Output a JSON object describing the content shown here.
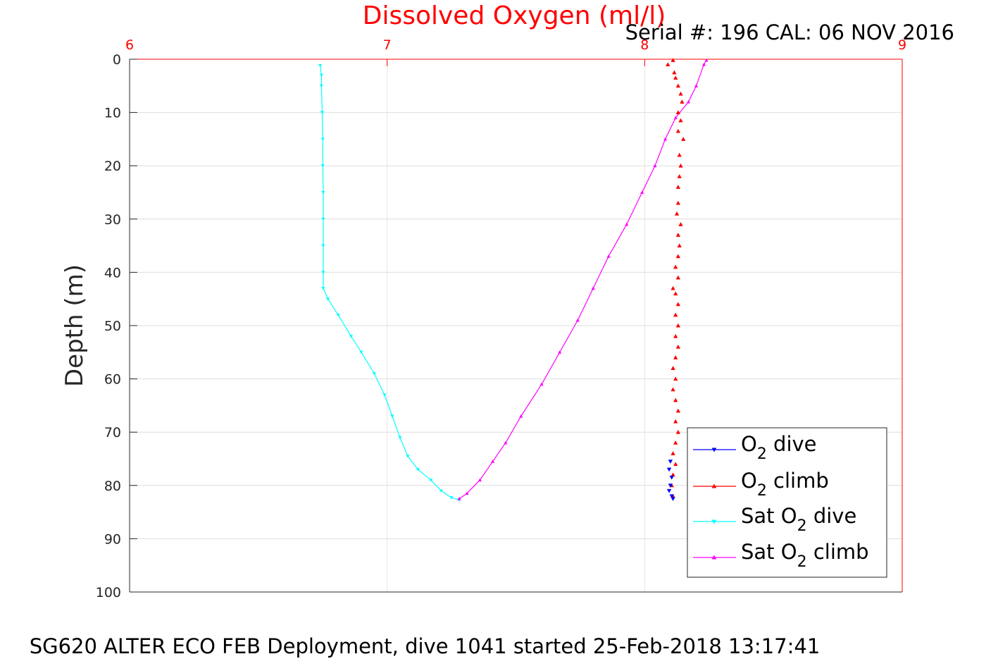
{
  "chart_data": {
    "type": "line",
    "title": "Dissolved Oxygen (ml/l)",
    "serial_label": "Serial #: 196  CAL: 06 NOV 2016",
    "caption": "SG620 ALTER ECO FEB Deployment, dive 1041 started 25-Feb-2018 13:17:41",
    "ylabel": "Depth (m)",
    "xlabel": "",
    "xlim": [
      6,
      9
    ],
    "ylim": [
      0,
      100
    ],
    "y_reversed": true,
    "x_axis_position": "top",
    "grid": true,
    "legend_placement": "bottom-right",
    "x_ticks": [
      "6",
      "7",
      "8",
      "9"
    ],
    "y_ticks": [
      "0",
      "10",
      "20",
      "30",
      "40",
      "50",
      "60",
      "70",
      "80",
      "90",
      "100"
    ],
    "colors": {
      "title": "#ff0000",
      "x_axis": "#ff0000",
      "grid": "#dedede",
      "text": "#262626"
    },
    "series": [
      {
        "label_main": "O",
        "label_sub": "2",
        "label_rest": " dive",
        "color": "#0000ff",
        "marker": "triangle-down",
        "points": [
          [
            8.1,
            75.5
          ],
          [
            8.095,
            77.0
          ],
          [
            8.105,
            78.5
          ],
          [
            8.1,
            80.0
          ],
          [
            8.095,
            81.0
          ],
          [
            8.105,
            82.0
          ],
          [
            8.11,
            82.5
          ]
        ]
      },
      {
        "label_main": "O",
        "label_sub": "2",
        "label_rest": " climb",
        "color": "#ff0000",
        "marker": "triangle-up",
        "points": [
          [
            8.11,
            82.0
          ],
          [
            8.105,
            80.0
          ],
          [
            8.11,
            78.0
          ],
          [
            8.12,
            76.0
          ],
          [
            8.11,
            74.0
          ],
          [
            8.12,
            72.0
          ],
          [
            8.13,
            70.0
          ],
          [
            8.12,
            68.0
          ],
          [
            8.13,
            66.0
          ],
          [
            8.12,
            64.0
          ],
          [
            8.11,
            62.0
          ],
          [
            8.12,
            60.0
          ],
          [
            8.11,
            58.0
          ],
          [
            8.12,
            56.0
          ],
          [
            8.13,
            54.0
          ],
          [
            8.12,
            52.0
          ],
          [
            8.13,
            50.0
          ],
          [
            8.12,
            48.0
          ],
          [
            8.13,
            46.0
          ],
          [
            8.12,
            44.0
          ],
          [
            8.11,
            43.0
          ],
          [
            8.13,
            41.0
          ],
          [
            8.12,
            39.0
          ],
          [
            8.13,
            37.0
          ],
          [
            8.135,
            35.0
          ],
          [
            8.13,
            33.0
          ],
          [
            8.14,
            31.0
          ],
          [
            8.125,
            29.0
          ],
          [
            8.13,
            27.0
          ],
          [
            8.13,
            24.0
          ],
          [
            8.135,
            22.0
          ],
          [
            8.14,
            20.0
          ],
          [
            8.135,
            18.0
          ],
          [
            8.15,
            15.0
          ],
          [
            8.13,
            13.5
          ],
          [
            8.14,
            11.5
          ],
          [
            8.13,
            10.0
          ],
          [
            8.145,
            8.0
          ],
          [
            8.14,
            6.5
          ],
          [
            8.13,
            5.0
          ],
          [
            8.12,
            3.5
          ],
          [
            8.115,
            2.5
          ],
          [
            8.09,
            1.0
          ],
          [
            8.11,
            0.2
          ]
        ]
      },
      {
        "label_main": "Sat O",
        "label_sub": "2",
        "label_rest": " dive",
        "color": "#00ffff",
        "marker": "triangle-down",
        "points": [
          [
            6.74,
            1.2
          ],
          [
            6.745,
            3.0
          ],
          [
            6.745,
            5.0
          ],
          [
            6.748,
            10.0
          ],
          [
            6.75,
            15.0
          ],
          [
            6.75,
            20.0
          ],
          [
            6.752,
            25.0
          ],
          [
            6.752,
            30.0
          ],
          [
            6.752,
            35.0
          ],
          [
            6.752,
            40.0
          ],
          [
            6.752,
            43.0
          ],
          [
            6.77,
            45.0
          ],
          [
            6.81,
            48.0
          ],
          [
            6.86,
            52.0
          ],
          [
            6.9,
            55.0
          ],
          [
            6.95,
            59.0
          ],
          [
            6.99,
            63.0
          ],
          [
            7.02,
            67.0
          ],
          [
            7.05,
            71.0
          ],
          [
            7.08,
            74.5
          ],
          [
            7.12,
            77.0
          ],
          [
            7.17,
            79.0
          ],
          [
            7.21,
            81.0
          ],
          [
            7.25,
            82.3
          ],
          [
            7.28,
            82.7
          ]
        ]
      },
      {
        "label_main": "Sat O",
        "label_sub": "2",
        "label_rest": " climb",
        "color": "#ff00ff",
        "marker": "triangle-up",
        "points": [
          [
            7.28,
            82.5
          ],
          [
            7.31,
            81.5
          ],
          [
            7.36,
            79.0
          ],
          [
            7.41,
            75.5
          ],
          [
            7.46,
            72.0
          ],
          [
            7.52,
            67.0
          ],
          [
            7.6,
            61.0
          ],
          [
            7.67,
            55.0
          ],
          [
            7.74,
            49.0
          ],
          [
            7.8,
            43.0
          ],
          [
            7.86,
            37.0
          ],
          [
            7.93,
            31.0
          ],
          [
            7.99,
            25.0
          ],
          [
            8.04,
            20.0
          ],
          [
            8.08,
            15.0
          ],
          [
            8.12,
            11.0
          ],
          [
            8.17,
            8.0
          ],
          [
            8.2,
            5.0
          ],
          [
            8.23,
            1.0
          ],
          [
            8.24,
            0.2
          ]
        ]
      }
    ]
  }
}
